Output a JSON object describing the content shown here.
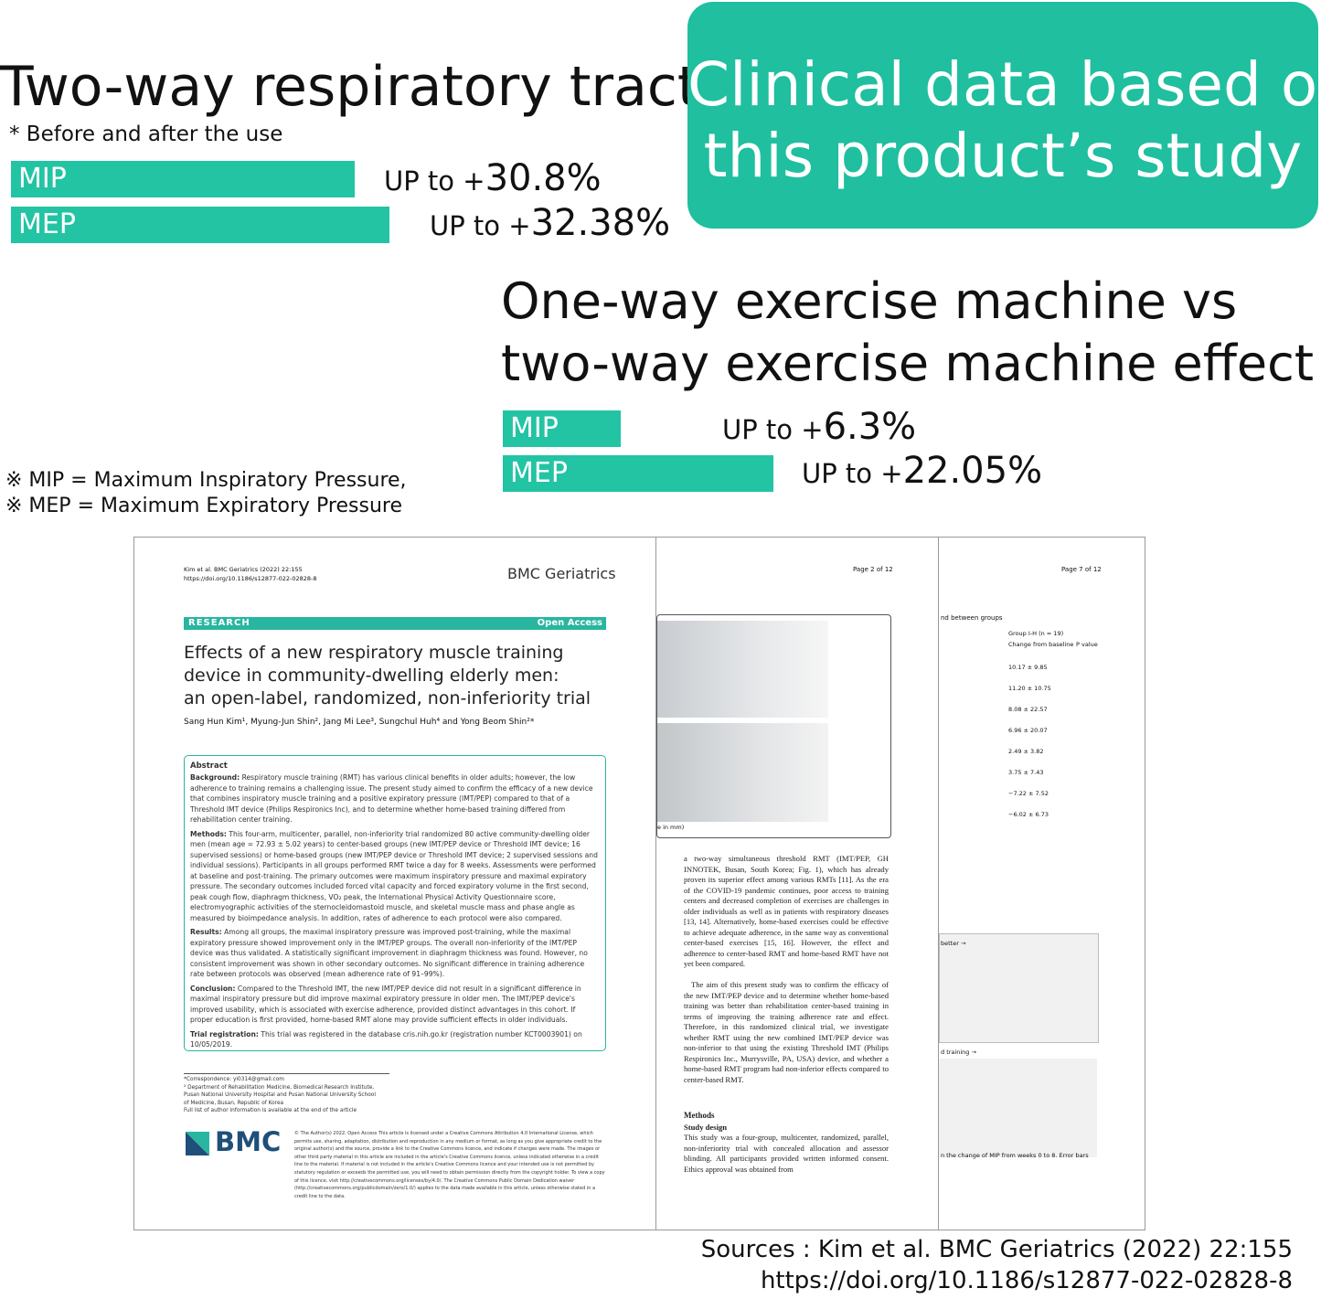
{
  "left": {
    "title": "Two-way respiratory tract",
    "subtitle": "*  Before and after the use",
    "rows": [
      {
        "label": "MIP",
        "prefix": "UP to +",
        "value": "30.8%"
      },
      {
        "label": "MEP",
        "prefix": "UP to +",
        "value": "32.38%"
      }
    ]
  },
  "badge": {
    "lines": [
      "Clinical data based on",
      "this product’s study"
    ]
  },
  "compare": {
    "title_lines": [
      "One-way exercise machine vs",
      "two-way exercise machine effect"
    ],
    "rows": [
      {
        "label": "MIP",
        "prefix": "UP to +",
        "value": "6.3%"
      },
      {
        "label": "MEP",
        "prefix": "UP to +",
        "value": "22.05%"
      }
    ]
  },
  "notes": [
    "※ MIP = Maximum Inspiratory Pressure,",
    "※ MEP = Maximum Expiratory Pressure"
  ],
  "paper": {
    "page1": {
      "citation": "Kim et al. BMC Geriatrics      (2022) 22:155",
      "doi": "https://doi.org/10.1186/s12877-022-02828-8",
      "journal": "BMC Geriatrics",
      "section": "RESEARCH",
      "access": "Open Access",
      "title_lines": [
        "Effects of a new respiratory muscle training",
        "device in community-dwelling elderly men:",
        "an open-label, randomized, non-inferiority trial"
      ],
      "authors": "Sang Hun Kim¹, Myung-Jun Shin², Jang Mi Lee³, Sungchul Huh⁴ and Yong Beom Shin²*",
      "abstract_heading": "Abstract",
      "abstract": [
        {
          "head": "Background:",
          "text": "Respiratory muscle training (RMT) has various clinical benefits in older adults; however, the low adherence to training remains a challenging issue. The present study aimed to confirm the efficacy of a new device that combines inspiratory muscle training and a positive expiratory pressure (IMT/PEP) compared to that of a Threshold IMT device (Philips Respironics Inc), and to determine whether home-based training differed from rehabilitation center training."
        },
        {
          "head": "Methods:",
          "text": "This four-arm, multicenter, parallel, non-inferiority trial randomized 80 active community-dwelling older men (mean age = 72.93 ± 5.02 years) to center-based groups (new IMT/PEP device or Threshold IMT device; 16 supervised sessions) or home-based groups (new IMT/PEP device or Threshold IMT device; 2 supervised sessions and individual sessions). Participants in all groups performed RMT twice a day for 8 weeks. Assessments were performed at baseline and post-training. The primary outcomes were maximum inspiratory pressure and maximal expiratory pressure. The secondary outcomes included forced vital capacity and forced expiratory volume in the first second, peak cough flow, diaphragm thickness, VO₂ peak, the International Physical Activity Questionnaire score, electromyographic activities of the sternocleidomastoid muscle, and skeletal muscle mass and phase angle as measured by bioimpedance analysis. In addition, rates of adherence to each protocol were also compared."
        },
        {
          "head": "Results:",
          "text": "Among all groups, the maximal inspiratory pressure was improved post-training, while the maximal expiratory pressure showed improvement only in the IMT/PEP groups. The overall non-inferiority of the IMT/PEP device was thus validated. A statistically significant improvement in diaphragm thickness was found. However, no consistent improvement was shown in other secondary outcomes. No significant difference in training adherence rate between protocols was observed (mean adherence rate of 91–99%)."
        },
        {
          "head": "Conclusion:",
          "text": "Compared to the Threshold IMT, the new IMT/PEP device did not result in a significant difference in maximal inspiratory pressure but did improve maximal expiratory pressure in older men. The IMT/PEP device's improved usability, which is associated with exercise adherence, provided distinct advantages in this cohort. If proper education is first provided, home-based RMT alone may provide sufficient effects in older individuals."
        },
        {
          "head": "Trial registration:",
          "text": "This trial was registered in the database cris.nih.go.kr (registration number KCT0003901) on 10/05/2019."
        }
      ],
      "footnotes": [
        "*Correspondence: yi0314@gmail.com",
        "² Department of Rehabilitation Medicine, Biomedical Research Institute, Pusan National University Hospital and Pusan National University School of Medicine, Busan, Republic of Korea",
        "Full list of author information is available at the end of the article"
      ],
      "logo": "BMC",
      "license": "© The Author(s) 2022. Open Access This article is licensed under a Creative Commons Attribution 4.0 International License, which permits use, sharing, adaptation, distribution and reproduction in any medium or format, as long as you give appropriate credit to the original author(s) and the source, provide a link to the Creative Commons licence, and indicate if changes were made. The images or other third party material in this article are included in the article's Creative Commons licence, unless indicated otherwise in a credit line to the material. If material is not included in the article's Creative Commons licence and your intended use is not permitted by statutory regulation or exceeds the permitted use, you will need to obtain permission directly from the copyright holder. To view a copy of this licence, visit http://creativecommons.org/licenses/by/4.0/. The Creative Commons Public Domain Dedication waiver (http://creativecommons.org/publicdomain/zero/1.0/) applies to the data made available in this article, unless otherwise stated in a credit line to the data."
    },
    "page2": {
      "page": "Page 2 of 12",
      "caption": "e in mm)",
      "body": "a two-way simultaneous threshold RMT (IMT/PEP, GH INNOTEK, Busan, South Korea; Fig. 1), which has already proven its superior effect among various RMTs [11]. As the era of the COVID-19 pandemic continues, poor access to training centers and decreased completion of exercises are challenges in older individuals as well as in patients with respiratory diseases [13, 14]. Alternatively, home-based exercises could be effective to achieve adequate adherence, in the same way as conventional center-based exercises [15, 16]. However, the effect and adherence to center-based RMT and home-based RMT have not yet been compared.",
      "body2": "The aim of this present study was to confirm the efficacy of the new IMT/PEP device and to determine whether home-based training was better than rehabilitation center-based training in terms of improving the training adherence rate and effect. Therefore, in this randomized clinical trial, we investigate whether RMT using the new combined IMT/PEP device was non-inferior to that using the existing Threshold IMT (Philips Respironics Inc., Murrysville, PA, USA) device, and whether a home-based RMT program had non-inferior effects compared to center-based RMT.",
      "methods": "Methods",
      "study_design": "Study design",
      "body3": "This study was a four-group, multicenter, randomized, parallel, non-inferiority trial with concealed allocation and assessor blinding. All participants provided written informed consent. Ethics approval was obtained from"
    },
    "page3": {
      "page": "Page 7 of 12",
      "table_title": "nd between groups",
      "group": "Group I-H (n = 19)",
      "change": "Change from baseline",
      "pvalue": "P value",
      "rows": [
        "10.17 ± 9.85",
        "11.20 ± 10.75",
        "8.08 ± 22.57",
        "6.96 ± 20.07",
        "2.49 ± 3.82",
        "3.75 ± 7.43",
        "−7.22 ± 7.52",
        "−6.02 ± 6.73"
      ],
      "chart1": "better →",
      "chart2": "d training →",
      "caption": "n the change of MIP from weeks 0 to 8. Error bars"
    }
  },
  "sources": [
    "Sources : Kim et al. BMC Geriatrics  (2022) 22:155",
    "https://doi.org/10.1186/s12877-022-02828-8"
  ]
}
